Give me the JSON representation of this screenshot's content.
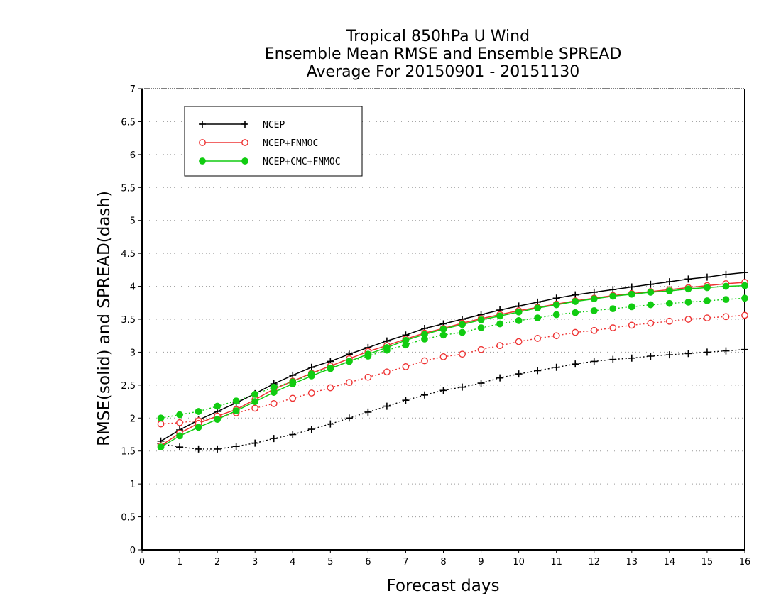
{
  "chart_data": {
    "type": "line",
    "title_lines": [
      "Tropical 850hPa U Wind",
      "Ensemble Mean RMSE and Ensemble SPREAD",
      "Average For 20150901 - 20151130"
    ],
    "xlabel": "Forecast days",
    "ylabel": "RMSE(solid) and SPREAD(dash)",
    "xlim": [
      0,
      16
    ],
    "ylim": [
      0,
      7
    ],
    "x_ticks": [
      "0",
      "1",
      "2",
      "3",
      "4",
      "5",
      "6",
      "7",
      "8",
      "9",
      "10",
      "11",
      "12",
      "13",
      "14",
      "15",
      "16"
    ],
    "y_ticks": [
      "0",
      "0.5",
      "1",
      "1.5",
      "2",
      "2.5",
      "3",
      "3.5",
      "4",
      "4.5",
      "5",
      "5.5",
      "6",
      "6.5",
      "7"
    ],
    "grid": "horizontal dotted",
    "legend_position": "top-left",
    "x": [
      0.5,
      1,
      1.5,
      2,
      2.5,
      3,
      3.5,
      4,
      4.5,
      5,
      5.5,
      6,
      6.5,
      7,
      7.5,
      8,
      8.5,
      9,
      9.5,
      10,
      10.5,
      11,
      11.5,
      12,
      12.5,
      13,
      13.5,
      14,
      14.5,
      15,
      15.5,
      16
    ],
    "series": [
      {
        "name": "NCEP",
        "color": "#000000",
        "marker": "plus",
        "rmse": [
          1.65,
          1.82,
          1.97,
          2.1,
          2.23,
          2.37,
          2.52,
          2.65,
          2.77,
          2.86,
          2.97,
          3.07,
          3.17,
          3.26,
          3.36,
          3.43,
          3.5,
          3.57,
          3.64,
          3.7,
          3.76,
          3.82,
          3.87,
          3.91,
          3.95,
          3.99,
          4.03,
          4.07,
          4.11,
          4.14,
          4.18,
          4.21
        ],
        "spread": [
          1.61,
          1.56,
          1.53,
          1.53,
          1.57,
          1.62,
          1.69,
          1.75,
          1.83,
          1.91,
          2.0,
          2.09,
          2.18,
          2.27,
          2.35,
          2.42,
          2.47,
          2.53,
          2.61,
          2.67,
          2.72,
          2.77,
          2.82,
          2.86,
          2.89,
          2.91,
          2.94,
          2.96,
          2.98,
          3.0,
          3.02,
          3.04
        ]
      },
      {
        "name": "NCEP+FNMOC",
        "color": "#ee3333",
        "marker": "open-circle",
        "rmse": [
          1.58,
          1.77,
          1.92,
          2.03,
          2.13,
          2.28,
          2.44,
          2.56,
          2.68,
          2.79,
          2.9,
          3.01,
          3.1,
          3.2,
          3.29,
          3.36,
          3.44,
          3.51,
          3.57,
          3.63,
          3.68,
          3.73,
          3.78,
          3.82,
          3.86,
          3.89,
          3.92,
          3.95,
          3.98,
          4.01,
          4.04,
          4.06
        ],
        "spread": [
          1.91,
          1.93,
          1.96,
          2.01,
          2.08,
          2.15,
          2.22,
          2.3,
          2.38,
          2.46,
          2.54,
          2.62,
          2.7,
          2.78,
          2.87,
          2.93,
          2.97,
          3.04,
          3.1,
          3.16,
          3.21,
          3.25,
          3.3,
          3.33,
          3.37,
          3.41,
          3.44,
          3.47,
          3.5,
          3.52,
          3.54,
          3.56
        ]
      },
      {
        "name": "NCEP+CMC+FNMOC",
        "color": "#11cc11",
        "marker": "filled-circle",
        "rmse": [
          1.56,
          1.73,
          1.86,
          1.98,
          2.11,
          2.25,
          2.39,
          2.52,
          2.64,
          2.75,
          2.86,
          2.97,
          3.07,
          3.18,
          3.27,
          3.35,
          3.42,
          3.49,
          3.55,
          3.61,
          3.67,
          3.72,
          3.77,
          3.81,
          3.85,
          3.88,
          3.91,
          3.93,
          3.96,
          3.98,
          4.0,
          4.01
        ],
        "spread": [
          2.0,
          2.05,
          2.1,
          2.18,
          2.26,
          2.36,
          2.47,
          2.55,
          2.67,
          2.76,
          2.86,
          2.94,
          3.03,
          3.11,
          3.2,
          3.26,
          3.3,
          3.37,
          3.43,
          3.48,
          3.52,
          3.57,
          3.6,
          3.63,
          3.66,
          3.69,
          3.72,
          3.74,
          3.76,
          3.78,
          3.8,
          3.82
        ]
      }
    ]
  }
}
